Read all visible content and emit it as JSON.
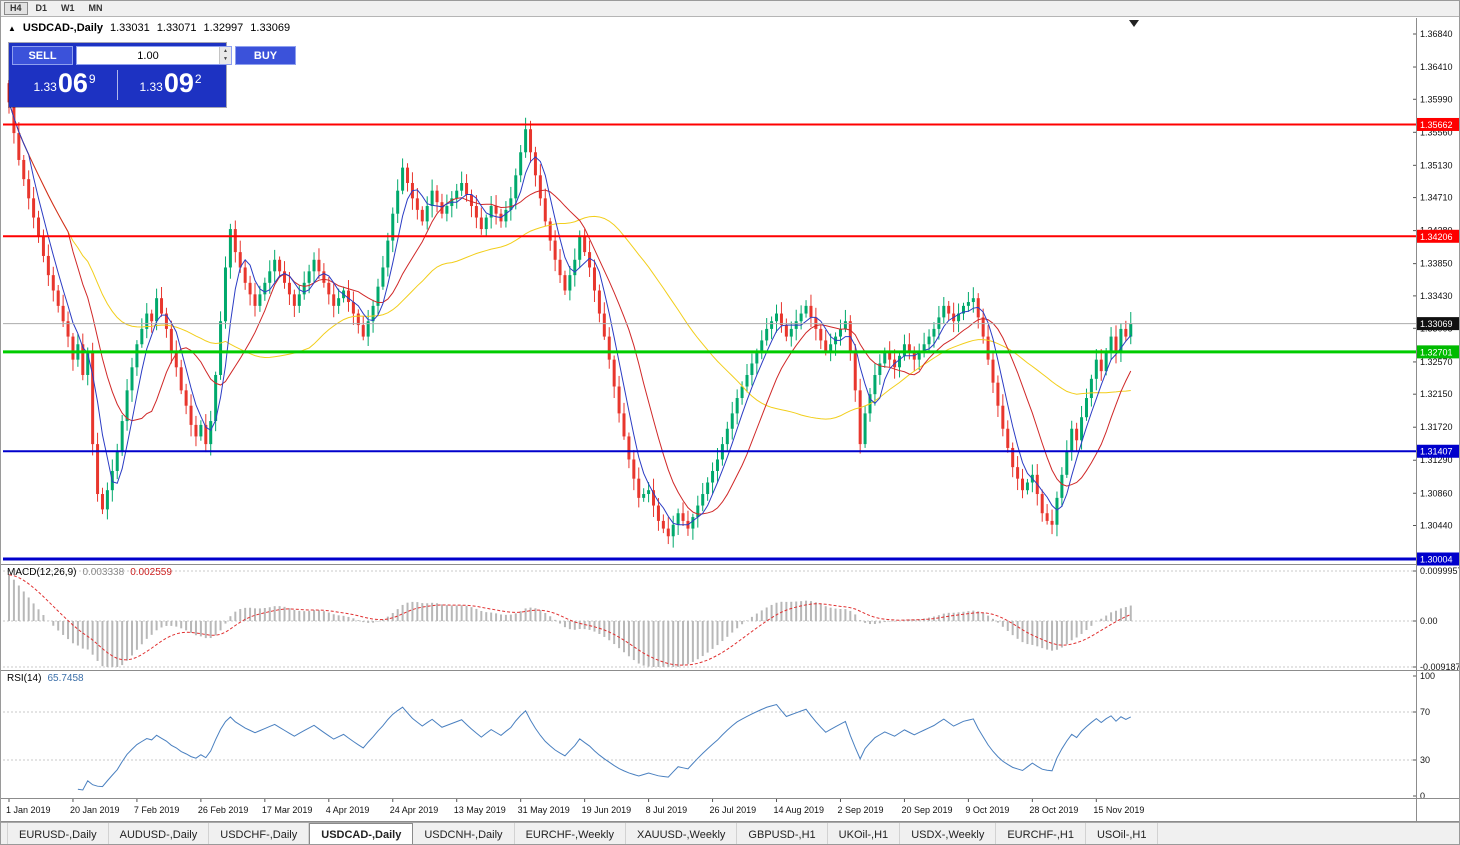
{
  "app": {
    "toolbar_timeframes": [
      "H4",
      "D1",
      "W1",
      "MN"
    ],
    "active_timeframe": "H4"
  },
  "chart_header": {
    "arrow_icon": "▲",
    "symbol": "USDCAD-,Daily",
    "open": "1.33031",
    "high": "1.33071",
    "low": "1.32997",
    "close": "1.33069"
  },
  "trade_panel": {
    "sell_label": "SELL",
    "buy_label": "BUY",
    "volume": "1.00",
    "sell_price": {
      "prefix": "1.33",
      "big": "06",
      "sup": "9",
      "full": "1.33069"
    },
    "buy_price": {
      "prefix": "1.33",
      "big": "09",
      "sup": "2",
      "full": "1.33092"
    }
  },
  "indicators": {
    "macd_label": "MACD(12,26,9)",
    "macd_main_value": "0.003338",
    "macd_signal_value": "0.002559",
    "rsi_label": "RSI(14)",
    "rsi_value": "65.7458"
  },
  "axes": {
    "price_ticks": [
      "1.36840",
      "1.36410",
      "1.35990",
      "1.35560",
      "1.35130",
      "1.34710",
      "1.34280",
      "1.33850",
      "1.33430",
      "1.33008",
      "1.32570",
      "1.32150",
      "1.31720",
      "1.31290",
      "1.30860",
      "1.30440"
    ],
    "macd_ticks": [
      "0.0099957",
      "0.00",
      "-0.0091877"
    ],
    "rsi_ticks": [
      "100",
      "70",
      "30",
      "0"
    ],
    "date_labels": [
      "1 Jan 2019",
      "20 Jan 2019",
      "7 Feb 2019",
      "26 Feb 2019",
      "17 Mar 2019",
      "4 Apr 2019",
      "24 Apr 2019",
      "13 May 2019",
      "31 May 2019",
      "19 Jun 2019",
      "8 Jul 2019",
      "26 Jul 2019",
      "14 Aug 2019",
      "2 Sep 2019",
      "20 Sep 2019",
      "9 Oct 2019",
      "28 Oct 2019",
      "15 Nov 2019"
    ]
  },
  "levels": [
    {
      "name": "resistance-line-upper",
      "label": "1.35662",
      "price": 1.35662,
      "line_color": "#FF0000",
      "badge_color": "#FF0000",
      "width": 2,
      "current": false
    },
    {
      "name": "resistance-line-lower",
      "label": "1.34206",
      "price": 1.34206,
      "line_color": "#FF0000",
      "badge_color": "#FF0000",
      "width": 2,
      "current": false
    },
    {
      "name": "current-price-line",
      "label": "1.33069",
      "price": 1.33069,
      "line_color": "#ABABAB",
      "badge_color": "#111111",
      "width": 1,
      "current": true
    },
    {
      "name": "support-line-green",
      "label": "1.32701",
      "price": 1.32701,
      "line_color": "#00CC00",
      "badge_color": "#00BB00",
      "width": 3,
      "current": false
    },
    {
      "name": "support-line-blue-mid",
      "label": "1.31407",
      "price": 1.31407,
      "line_color": "#0000CC",
      "badge_color": "#0000CC",
      "width": 2,
      "current": false
    },
    {
      "name": "support-line-blue-low",
      "label": "1.30004",
      "price": 1.30004,
      "line_color": "#0000CC",
      "badge_color": "#0000CC",
      "width": 3,
      "current": false
    }
  ],
  "tabs": {
    "active": "USDCAD-,Daily",
    "items": [
      "EURUSD-,Daily",
      "AUDUSD-,Daily",
      "USDCHF-,Daily",
      "USDCAD-,Daily",
      "USDCNH-,Daily",
      "EURCHF-,Weekly",
      "XAUUSD-,Weekly",
      "GBPUSD-,H1",
      "UKOil-,H1",
      "USDX-,Weekly",
      "EURCHF-,H1",
      "USOil-,H1"
    ]
  },
  "colors": {
    "up": "#00A96C",
    "down": "#E8362D",
    "ma_fast": "#2B3CC4",
    "ma_mid": "#D02828",
    "ma_slow": "#F2CE1B",
    "macd_hist": "#B8B8B8",
    "macd_signal": "#E03030",
    "rsi": "#4A80C0",
    "grid_dash": "#C8C8C8",
    "axis_text": "#111111"
  },
  "chart_data": {
    "type": "candlestick",
    "symbol": "USDCAD",
    "period": "Daily",
    "title_ohlc": {
      "open": 1.33031,
      "high": 1.33071,
      "low": 1.32997,
      "close": 1.33069
    },
    "x_label_step": 13,
    "price_range_visible": {
      "top": 1.37048,
      "bottom": 1.29939
    },
    "horizontal_levels": [
      1.35662,
      1.34206,
      1.33069,
      1.32701,
      1.31407,
      1.30004
    ],
    "indicator_settings": {
      "macd": [
        12,
        26,
        9
      ],
      "rsi": 14,
      "ma_periods": [
        5,
        13,
        45
      ]
    },
    "first_open": 1.362,
    "closes": [
      1.3595,
      1.3555,
      1.352,
      1.3495,
      1.347,
      1.3445,
      1.342,
      1.3395,
      1.337,
      1.335,
      1.333,
      1.331,
      1.329,
      1.326,
      1.328,
      1.324,
      1.327,
      1.315,
      1.3085,
      1.3065,
      1.309,
      1.3115,
      1.314,
      1.318,
      1.322,
      1.325,
      1.328,
      1.33,
      1.332,
      1.331,
      1.334,
      1.332,
      1.33,
      1.327,
      1.325,
      1.322,
      1.32,
      1.3175,
      1.316,
      1.3175,
      1.315,
      1.318,
      1.324,
      1.331,
      1.338,
      1.343,
      1.34,
      1.338,
      1.336,
      1.3345,
      1.333,
      1.3345,
      1.336,
      1.3375,
      1.339,
      1.3375,
      1.336,
      1.3345,
      1.333,
      1.3345,
      1.336,
      1.3375,
      1.339,
      1.3375,
      1.336,
      1.3345,
      1.333,
      1.334,
      1.335,
      1.3335,
      1.332,
      1.3305,
      1.329,
      1.331,
      1.333,
      1.3355,
      1.338,
      1.3415,
      1.345,
      1.348,
      1.351,
      1.349,
      1.347,
      1.3455,
      1.344,
      1.346,
      1.348,
      1.3465,
      1.345,
      1.346,
      1.347,
      1.348,
      1.349,
      1.3475,
      1.346,
      1.3445,
      1.343,
      1.3445,
      1.346,
      1.345,
      1.344,
      1.3455,
      1.347,
      1.35,
      1.353,
      1.356,
      1.353,
      1.35,
      1.347,
      1.344,
      1.3415,
      1.339,
      1.337,
      1.335,
      1.337,
      1.339,
      1.342,
      1.34,
      1.338,
      1.335,
      1.332,
      1.329,
      1.326,
      1.3225,
      1.319,
      1.316,
      1.313,
      1.3105,
      1.308,
      1.3085,
      1.309,
      1.307,
      1.305,
      1.304,
      1.303,
      1.3045,
      1.306,
      1.305,
      1.304,
      1.3055,
      1.307,
      1.3085,
      1.31,
      1.3115,
      1.313,
      1.315,
      1.317,
      1.319,
      1.321,
      1.3225,
      1.324,
      1.3255,
      1.327,
      1.3285,
      1.33,
      1.331,
      1.332,
      1.3305,
      1.329,
      1.33,
      1.331,
      1.332,
      1.333,
      1.3315,
      1.33,
      1.3285,
      1.327,
      1.328,
      1.329,
      1.33,
      1.331,
      1.327,
      1.322,
      1.315,
      1.319,
      1.3215,
      1.324,
      1.3255,
      1.327,
      1.326,
      1.325,
      1.3265,
      1.328,
      1.327,
      1.326,
      1.327,
      1.328,
      1.329,
      1.33,
      1.3315,
      1.333,
      1.332,
      1.331,
      1.332,
      1.333,
      1.3335,
      1.334,
      1.3315,
      1.329,
      1.326,
      1.323,
      1.32,
      1.317,
      1.3145,
      1.312,
      1.3105,
      1.309,
      1.31,
      1.311,
      1.3085,
      1.306,
      1.305,
      1.3045,
      1.308,
      1.311,
      1.314,
      1.317,
      1.3155,
      1.3185,
      1.321,
      1.3235,
      1.326,
      1.3245,
      1.327,
      1.329,
      1.327,
      1.33,
      1.329,
      1.3307
    ]
  }
}
